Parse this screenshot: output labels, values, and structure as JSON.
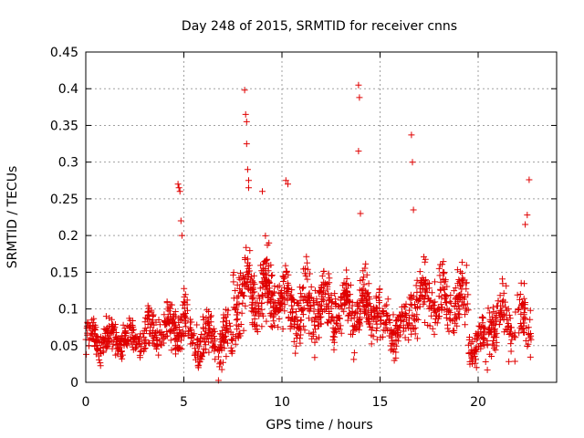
{
  "chart_data": {
    "type": "scatter",
    "title": "Day 248 of 2015, SRMTID for receiver cnns",
    "xlabel": "GPS time / hours",
    "ylabel": "SRMTID / TECUs",
    "xlim": [
      0,
      24
    ],
    "ylim": [
      0,
      0.45
    ],
    "x_ticks": [
      0,
      5,
      10,
      15,
      20
    ],
    "x_tick_labels": [
      "0",
      "5",
      "10",
      "15",
      "20"
    ],
    "y_ticks": [
      0,
      0.05,
      0.1,
      0.15,
      0.2,
      0.25,
      0.3,
      0.35,
      0.4,
      0.45
    ],
    "y_tick_labels": [
      "0",
      "0.05",
      "0.1",
      "0.15",
      "0.2",
      "0.25",
      "0.3",
      "0.35",
      "0.4",
      "0.45"
    ],
    "grid": true,
    "marker": "+",
    "color": "#e00000",
    "series": [
      {
        "name": "SRMTID",
        "outliers": [
          [
            4.7,
            0.27
          ],
          [
            4.75,
            0.265
          ],
          [
            4.8,
            0.26
          ],
          [
            4.85,
            0.22
          ],
          [
            4.9,
            0.2
          ],
          [
            8.1,
            0.398
          ],
          [
            8.15,
            0.365
          ],
          [
            8.2,
            0.355
          ],
          [
            8.2,
            0.325
          ],
          [
            8.25,
            0.29
          ],
          [
            8.3,
            0.275
          ],
          [
            8.3,
            0.265
          ],
          [
            9.0,
            0.26
          ],
          [
            10.2,
            0.275
          ],
          [
            10.3,
            0.27
          ],
          [
            13.9,
            0.405
          ],
          [
            13.95,
            0.388
          ],
          [
            13.9,
            0.315
          ],
          [
            14.0,
            0.23
          ],
          [
            16.6,
            0.337
          ],
          [
            16.65,
            0.3
          ],
          [
            16.7,
            0.235
          ],
          [
            22.6,
            0.276
          ],
          [
            22.5,
            0.228
          ],
          [
            22.4,
            0.215
          ]
        ],
        "segments": [
          {
            "x": [
              0,
              3
            ],
            "center": 0.06,
            "spread": 0.035,
            "n": 230
          },
          {
            "x": [
              3,
              4.5
            ],
            "center": 0.07,
            "spread": 0.045,
            "n": 110
          },
          {
            "x": [
              4.5,
              5.2
            ],
            "center": 0.08,
            "spread": 0.06,
            "n": 70
          },
          {
            "x": [
              5.2,
              7.5
            ],
            "center": 0.055,
            "spread": 0.045,
            "n": 170
          },
          {
            "x": [
              7.5,
              10
            ],
            "center": 0.12,
            "spread": 0.07,
            "n": 240
          },
          {
            "x": [
              10,
              13
            ],
            "center": 0.1,
            "spread": 0.065,
            "n": 260
          },
          {
            "x": [
              13,
              15
            ],
            "center": 0.1,
            "spread": 0.06,
            "n": 180
          },
          {
            "x": [
              15,
              16.5
            ],
            "center": 0.075,
            "spread": 0.04,
            "n": 110
          },
          {
            "x": [
              16.5,
              19.5
            ],
            "center": 0.11,
            "spread": 0.06,
            "n": 220
          },
          {
            "x": [
              19.5,
              20.5
            ],
            "center": 0.05,
            "spread": 0.045,
            "n": 70
          },
          {
            "x": [
              20.5,
              22.7
            ],
            "center": 0.085,
            "spread": 0.06,
            "n": 150
          }
        ]
      }
    ]
  }
}
